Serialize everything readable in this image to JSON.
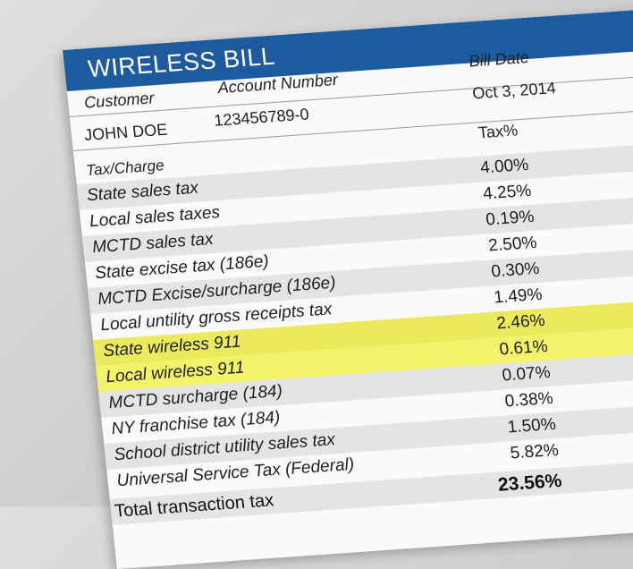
{
  "bill": {
    "title": "WIRELESS BILL",
    "labels": {
      "customer": "Customer",
      "account_number": "Account Number",
      "bill_date": "Bill Date",
      "tax_charge": "Tax/Charge",
      "tax_pct": "Tax%"
    },
    "customer_name": "JOHN DOE",
    "account_number": "123456789-0",
    "bill_date": "Oct 3, 2014",
    "taxes": [
      {
        "name": "State sales tax",
        "pct": "4.00%"
      },
      {
        "name": "Local sales taxes",
        "pct": "4.25%"
      },
      {
        "name": "MCTD sales tax",
        "pct": "0.19%"
      },
      {
        "name": "State excise tax (186e)",
        "pct": "2.50%"
      },
      {
        "name": "MCTD Excise/surcharge (186e)",
        "pct": "0.30%"
      },
      {
        "name": "Local untility gross receipts tax",
        "pct": "1.49%"
      },
      {
        "name": "State wireless 911",
        "pct": "2.46%",
        "highlighted": true
      },
      {
        "name": "Local wireless 911",
        "pct": "0.61%",
        "highlighted": true
      },
      {
        "name": "MCTD surcharge (184)",
        "pct": "0.07%"
      },
      {
        "name": "NY franchise tax (184)",
        "pct": "0.38%"
      },
      {
        "name": "School district utility sales tax",
        "pct": "1.50%"
      },
      {
        "name": "Universal Service Tax (Federal)",
        "pct": "5.82%"
      }
    ],
    "total": {
      "name": "Total transaction tax",
      "pct": "23.56%"
    },
    "colors": {
      "banner": "#1e5a9e",
      "highlight": "#f3f36a"
    }
  }
}
